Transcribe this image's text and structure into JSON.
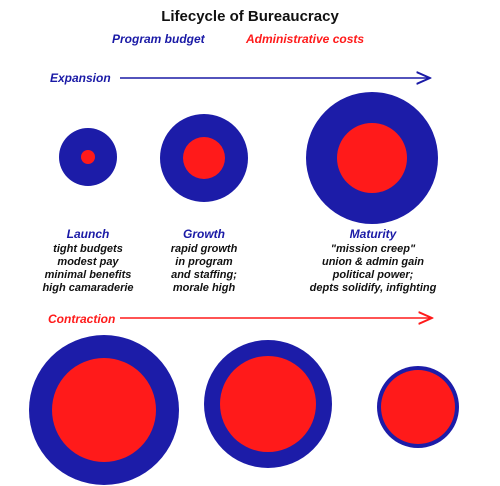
{
  "title": "Lifecycle of Bureaucracy",
  "legend": {
    "program_budget": {
      "label": "Program budget",
      "color": "#1a1aa6"
    },
    "admin_costs": {
      "label": "Administrative costs",
      "color": "#ff1a1a"
    }
  },
  "phases": {
    "expansion": {
      "label": "Expansion",
      "color": "#1a1aa6"
    },
    "contraction": {
      "label": "Contraction",
      "color": "#ff1a1a"
    }
  },
  "stages": [
    {
      "name": "Launch",
      "desc": [
        "tight budgets",
        "modest pay",
        "minimal benefits",
        "high camaraderie"
      ]
    },
    {
      "name": "Growth",
      "desc": [
        "rapid growth",
        "in program",
        "and staffing;",
        "morale high"
      ]
    },
    {
      "name": "Maturity",
      "desc": [
        "\"mission creep\"",
        "union & admin gain",
        "political power;",
        "depts solidify, infighting"
      ]
    }
  ],
  "colors": {
    "outer": "#1c1ca8",
    "inner": "#ff1a1a"
  }
}
